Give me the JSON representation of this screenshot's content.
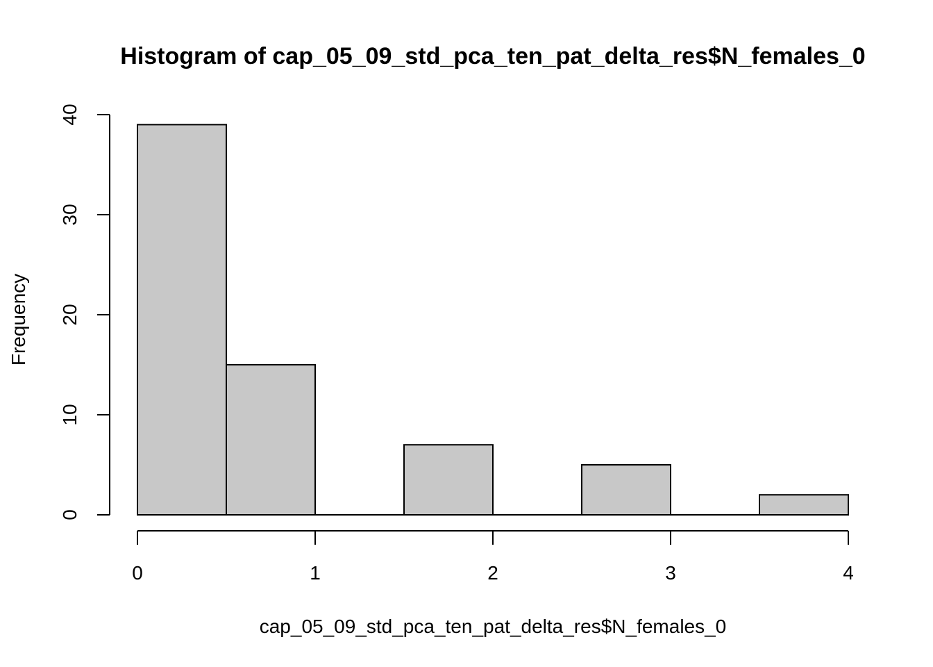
{
  "chart_data": {
    "type": "bar",
    "title": "Histogram of cap_05_09_std_pca_ten_pat_delta_res$N_females_0",
    "xlabel": "cap_05_09_std_pca_ten_pat_delta_res$N_females_0",
    "ylabel": "Frequency",
    "bins": [
      {
        "x0": 0.0,
        "x1": 0.5,
        "count": 39
      },
      {
        "x0": 0.5,
        "x1": 1.0,
        "count": 15
      },
      {
        "x0": 1.0,
        "x1": 1.5,
        "count": 0
      },
      {
        "x0": 1.5,
        "x1": 2.0,
        "count": 7
      },
      {
        "x0": 2.0,
        "x1": 2.5,
        "count": 0
      },
      {
        "x0": 2.5,
        "x1": 3.0,
        "count": 5
      },
      {
        "x0": 3.0,
        "x1": 3.5,
        "count": 0
      },
      {
        "x0": 3.5,
        "x1": 4.0,
        "count": 2
      }
    ],
    "xlim": [
      0,
      4
    ],
    "ylim": [
      0,
      40
    ],
    "x_ticks": [
      "0",
      "1",
      "2",
      "3",
      "4"
    ],
    "y_ticks": [
      "0",
      "10",
      "20",
      "30",
      "40"
    ],
    "grid": false,
    "colors": {
      "bar_fill": "#c8c8c8",
      "bar_stroke": "#000000"
    }
  }
}
